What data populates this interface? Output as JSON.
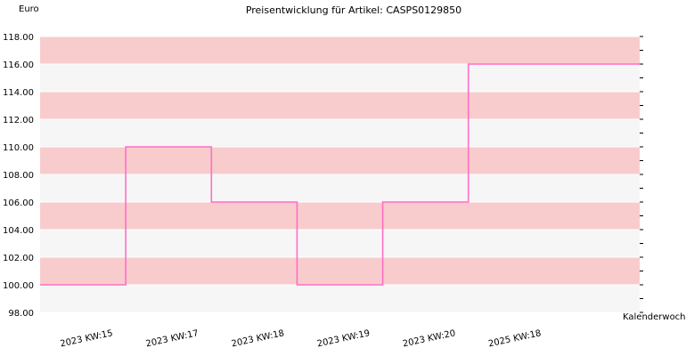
{
  "chart_data": {
    "type": "line",
    "step": true,
    "title": "Preisentwicklung für Artikel: CASPS0129850",
    "ylabel": "Euro",
    "xlabel": "Kalenderwoche",
    "ylim": [
      98,
      118
    ],
    "y_tick_step": 2,
    "y_tick_labels": [
      "98.00",
      "100.00",
      "102.00",
      "104.00",
      "106.00",
      "108.00",
      "110.00",
      "112.00",
      "114.00",
      "116.00",
      "118.00"
    ],
    "categories": [
      "2023 KW:15",
      "2023 KW:17",
      "2023 KW:18",
      "2023 KW:19",
      "2023 KW:20",
      "2025 KW:18"
    ],
    "series": [
      {
        "values": [
          100,
          110,
          106,
          100,
          106,
          116
        ]
      }
    ],
    "colors": {
      "line": "#ff6ec7",
      "band_dark": "#f8cccc",
      "band_light": "#f6f6f6",
      "grid": "#ffffff"
    }
  }
}
